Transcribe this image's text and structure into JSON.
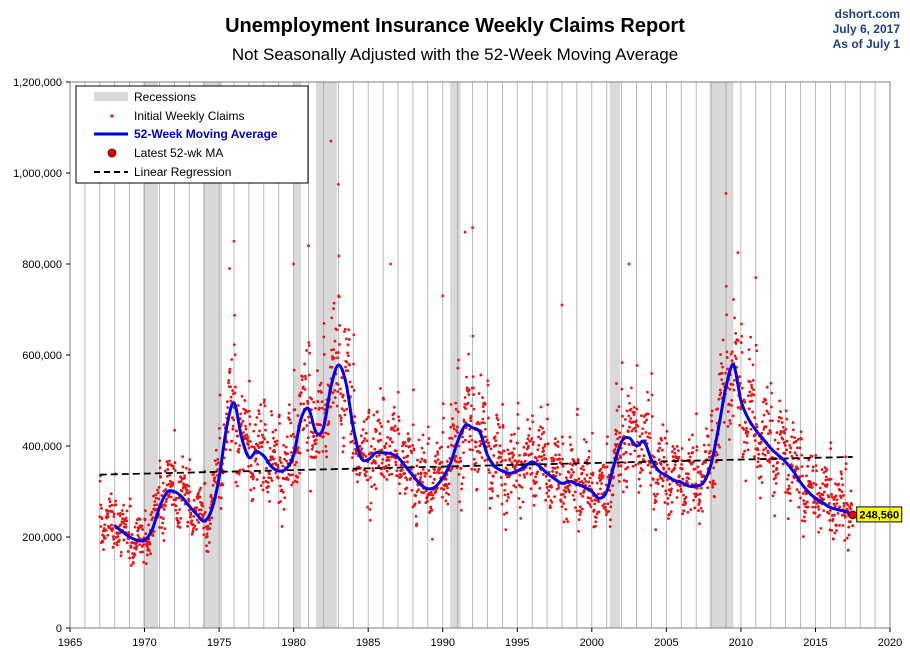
{
  "header": {
    "title": "Unemployment Insurance Weekly Claims Report",
    "subtitle": "Not Seasonally Adjusted with the 52-Week Moving Average",
    "credit_source": "dshort.com",
    "credit_date": "July 6, 2017",
    "credit_asof": "As of July 1"
  },
  "colors": {
    "claims": "#ee1111",
    "moving_average": "#0000ee",
    "recession": "#d9d9d9",
    "regression": "#000000",
    "callout": "#ffff00"
  },
  "chart_data": {
    "type": "line",
    "title": "Unemployment Insurance Weekly Claims Report",
    "subtitle": "Not Seasonally Adjusted with the 52-Week Moving Average",
    "xlim": [
      1965,
      2020
    ],
    "ylim": [
      0,
      1200000
    ],
    "x_ticks": [
      1965,
      1970,
      1975,
      1980,
      1985,
      1990,
      1995,
      2000,
      2005,
      2010,
      2015,
      2020
    ],
    "y_ticks": [
      0,
      200000,
      400000,
      600000,
      800000,
      1000000,
      1200000
    ],
    "x_tick_labels": [
      "1965",
      "1970",
      "1975",
      "1980",
      "1985",
      "1990",
      "1995",
      "2000",
      "2005",
      "2010",
      "2015",
      "2020"
    ],
    "y_tick_labels": [
      "0",
      "200,000",
      "400,000",
      "600,000",
      "800,000",
      "1,000,000",
      "1,200,000"
    ],
    "grid": "vertical-yearly",
    "legend_position": "top-left",
    "legend": [
      {
        "key": "recessions",
        "label": "Recessions"
      },
      {
        "key": "claims",
        "label": "Initial Weekly Claims"
      },
      {
        "key": "ma",
        "label": "52-Week Moving Average"
      },
      {
        "key": "latest",
        "label": "Latest 52-wk MA"
      },
      {
        "key": "regression",
        "label": "Linear Regression"
      }
    ],
    "recessions": [
      [
        1969.9,
        1970.9
      ],
      [
        1973.9,
        1975.2
      ],
      [
        1980.0,
        1980.5
      ],
      [
        1981.5,
        1982.9
      ],
      [
        1990.5,
        1991.2
      ],
      [
        2001.2,
        2001.9
      ],
      [
        2007.9,
        2009.5
      ]
    ],
    "moving_average": {
      "name": "52-Week Moving Average",
      "x": [
        1968.0,
        1968.5,
        1969.0,
        1969.5,
        1970.0,
        1970.5,
        1971.0,
        1971.5,
        1972.0,
        1972.5,
        1973.0,
        1973.5,
        1974.0,
        1974.5,
        1975.0,
        1975.5,
        1976.0,
        1976.5,
        1977.0,
        1977.5,
        1978.0,
        1978.5,
        1979.0,
        1979.5,
        1980.0,
        1980.5,
        1981.0,
        1981.5,
        1982.0,
        1982.5,
        1983.0,
        1983.5,
        1984.0,
        1984.5,
        1985.0,
        1985.5,
        1986.0,
        1986.5,
        1987.0,
        1987.5,
        1988.0,
        1988.5,
        1989.0,
        1989.5,
        1990.0,
        1990.5,
        1991.0,
        1991.5,
        1992.0,
        1992.5,
        1993.0,
        1993.5,
        1994.0,
        1994.5,
        1995.0,
        1995.5,
        1996.0,
        1996.5,
        1997.0,
        1997.5,
        1998.0,
        1998.5,
        1999.0,
        1999.5,
        2000.0,
        2000.5,
        2001.0,
        2001.5,
        2002.0,
        2002.5,
        2003.0,
        2003.5,
        2004.0,
        2004.5,
        2005.0,
        2005.5,
        2006.0,
        2006.5,
        2007.0,
        2007.5,
        2008.0,
        2008.5,
        2009.0,
        2009.5,
        2010.0,
        2010.5,
        2011.0,
        2011.5,
        2012.0,
        2012.5,
        2013.0,
        2013.5,
        2014.0,
        2014.5,
        2015.0,
        2015.5,
        2016.0,
        2016.5,
        2017.0,
        2017.5
      ],
      "y": [
        225000,
        212000,
        200000,
        193000,
        193000,
        215000,
        265000,
        298000,
        300000,
        288000,
        268000,
        250000,
        235000,
        260000,
        330000,
        440000,
        495000,
        420000,
        375000,
        388000,
        378000,
        355000,
        345000,
        350000,
        380000,
        460000,
        482000,
        430000,
        440000,
        530000,
        578000,
        540000,
        440000,
        375000,
        370000,
        385000,
        385000,
        383000,
        375000,
        355000,
        335000,
        316000,
        306000,
        310000,
        330000,
        360000,
        410000,
        445000,
        440000,
        430000,
        380000,
        355000,
        345000,
        340000,
        345000,
        355000,
        365000,
        355000,
        340000,
        328000,
        318000,
        322000,
        316000,
        310000,
        300000,
        285000,
        300000,
        360000,
        410000,
        418000,
        400000,
        410000,
        370000,
        345000,
        335000,
        325000,
        320000,
        312000,
        312000,
        320000,
        360000,
        440000,
        530000,
        578000,
        500000,
        460000,
        435000,
        415000,
        395000,
        380000,
        365000,
        345000,
        320000,
        300000,
        285000,
        275000,
        265000,
        260000,
        256000,
        248560
      ]
    },
    "regression": {
      "name": "Linear Regression",
      "x": [
        1967.0,
        2017.5
      ],
      "y": [
        337000,
        376000
      ]
    },
    "latest": {
      "name": "Latest 52-wk MA",
      "x": 2017.5,
      "y": 248560,
      "label": "248,560"
    },
    "claims_scatter": {
      "name": "Initial Weekly Claims",
      "points_per_year": 52,
      "start_year": 1967,
      "end_year": 2017.5,
      "peak_points": [
        [
          1976.0,
          850000
        ],
        [
          1975.7,
          790000
        ],
        [
          1980.0,
          800000
        ],
        [
          1981.0,
          840000
        ],
        [
          1982.5,
          1070000
        ],
        [
          1983.0,
          975000
        ],
        [
          1986.5,
          800000
        ],
        [
          1991.5,
          870000
        ],
        [
          1992.0,
          880000
        ],
        [
          2002.5,
          800000
        ],
        [
          2009.0,
          955000
        ],
        [
          2009.8,
          825000
        ],
        [
          2011.0,
          770000
        ],
        [
          1990.0,
          730000
        ],
        [
          1998.0,
          710000
        ]
      ]
    }
  }
}
